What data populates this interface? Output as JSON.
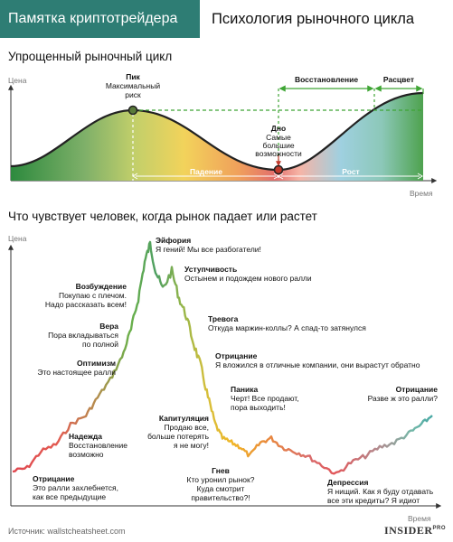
{
  "header": {
    "badge": "Памятка криптотрейдера",
    "title": "Психология рыночного цикла"
  },
  "cycle": {
    "title": "Упрощенный рыночный цикл",
    "y_axis": "Цена",
    "x_axis": "Время",
    "peak_title": "Пик",
    "peak_text": [
      "Максимальный",
      "риск"
    ],
    "bottom_title": "Дно",
    "bottom_text": [
      "Самые",
      "большие",
      "возможности"
    ],
    "recovery": "Восстановление",
    "boom": "Расцвет",
    "fall": "Падение",
    "growth": "Рост"
  },
  "emotions": {
    "title": "Что чувствует человек, когда рынок падает или растет",
    "y_axis": "Цена",
    "x_axis": "Время",
    "items": [
      {
        "title": "Эйфория",
        "lines": [
          "Я гений! Мы все разбогатели!"
        ]
      },
      {
        "title": "Уступчивость",
        "lines": [
          "Остынем и подождем нового ралли"
        ]
      },
      {
        "title": "Возбуждение",
        "lines": [
          "Покупаю с плечом.",
          "Надо рассказать всем!"
        ]
      },
      {
        "title": "Тревога",
        "lines": [
          "Откуда маржин-коллы? А спад-то затянулся"
        ]
      },
      {
        "title": "Вера",
        "lines": [
          "Пора вкладываться",
          "по полной"
        ]
      },
      {
        "title": "Отрицание",
        "lines": [
          "Я вложился в отличные компании, они вырастут обратно"
        ]
      },
      {
        "title": "Оптимизм",
        "lines": [
          "Это настоящее ралли"
        ]
      },
      {
        "title": "Паника",
        "lines": [
          "Черт! Все продают,",
          "пора выходить!"
        ]
      },
      {
        "title": "Отрицание",
        "lines": [
          "Разве ж это ралли?"
        ]
      },
      {
        "title": "Капитуляция",
        "lines": [
          "Продаю все,",
          "больше потерять",
          "я не могу!"
        ]
      },
      {
        "title": "Надежда",
        "lines": [
          "Восстановление",
          "возможно"
        ]
      },
      {
        "title": "Гнев",
        "lines": [
          "Кто уронил рынок?",
          "Куда смотрит",
          "правительство?!"
        ]
      },
      {
        "title": "Депрессия",
        "lines": [
          "Я нищий. Как я буду отдавать",
          "все эти кредиты? Я идиот"
        ]
      },
      {
        "title": "Отрицание",
        "lines": [
          "Это ралли захлебнется,",
          "как все предыдущие"
        ]
      }
    ]
  },
  "footer": {
    "source": "Источник: wallstcheatsheet.com",
    "brand": "INSIDER",
    "brand_sup": "PRO"
  },
  "colors": {
    "teal": "#2e7d74",
    "green_arrow": "#3fa535",
    "bottom_dot": "#c0392b"
  }
}
